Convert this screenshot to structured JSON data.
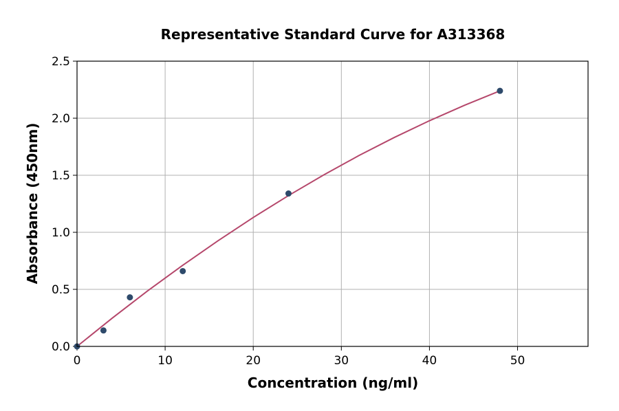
{
  "chart_data": {
    "type": "scatter",
    "title": "Representative Standard Curve for A313368",
    "xlabel": "Concentration (ng/ml)",
    "ylabel": "Absorbance (450nm)",
    "xlim": [
      0,
      58
    ],
    "ylim": [
      0,
      2.5
    ],
    "xticks": [
      0,
      10,
      20,
      30,
      40,
      50
    ],
    "yticks": [
      0.0,
      0.5,
      1.0,
      1.5,
      2.0,
      2.5
    ],
    "grid": true,
    "points": {
      "x": [
        0,
        3,
        6,
        12,
        24,
        48
      ],
      "y": [
        0.0,
        0.14,
        0.43,
        0.66,
        1.34,
        2.24
      ]
    },
    "fit_curve": {
      "x": [
        0,
        4,
        8,
        12,
        16,
        20,
        24,
        28,
        32,
        36,
        40,
        44,
        48
      ],
      "y": [
        0.0,
        0.248,
        0.486,
        0.711,
        0.926,
        1.13,
        1.322,
        1.503,
        1.673,
        1.831,
        1.978,
        2.114,
        2.24
      ]
    },
    "colors": {
      "points": "#2e4a6b",
      "curve": "#b5476b",
      "grid": "#b0b0b0"
    }
  }
}
